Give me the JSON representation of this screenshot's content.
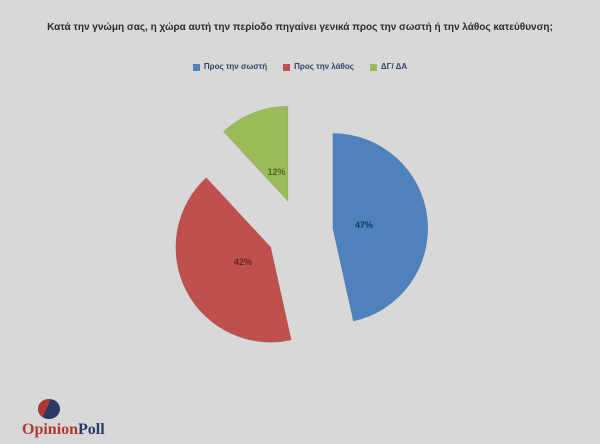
{
  "title": "Κατά την γνώμη σας, η χώρα αυτή την περίοδο πηγαίνει γενικά προς την σωστή ή την λάθος κατεύθυνση;",
  "legend": {
    "items": [
      {
        "label": "Προς την σωστή",
        "color": "#4F81BD"
      },
      {
        "label": "Προς την λάθος",
        "color": "#C0504D"
      },
      {
        "label": "ΔΓ/ ΔΑ",
        "color": "#9BBB59"
      }
    ]
  },
  "chart_data": {
    "type": "pie",
    "title": "Κατά την γνώμη σας, η χώρα αυτή την περίοδο πηγαίνει γενικά προς την σωστή ή την λάθος κατεύθυνση;",
    "categories": [
      "Προς την σωστή",
      "Προς την λάθος",
      "ΔΓ/ ΔΑ"
    ],
    "values": [
      47,
      42,
      12
    ],
    "data_labels": [
      "47%",
      "42%",
      "12%"
    ],
    "colors": [
      "#4F81BD",
      "#C0504D",
      "#9BBB59"
    ],
    "data_label_colors": [
      "#17375E",
      "#632523",
      "#4F6228"
    ],
    "exploded": true,
    "start_angle_deg": 0,
    "direction": "clockwise",
    "legend_position": "top"
  },
  "logo": {
    "text_primary": "Opinion",
    "text_secondary": "Poll",
    "color_primary": "#B03734",
    "color_secondary": "#2A3A66"
  },
  "colors": {
    "background": "#D8D8D8",
    "title_text": "#2B2B2B",
    "legend_text": "#2F4466"
  }
}
